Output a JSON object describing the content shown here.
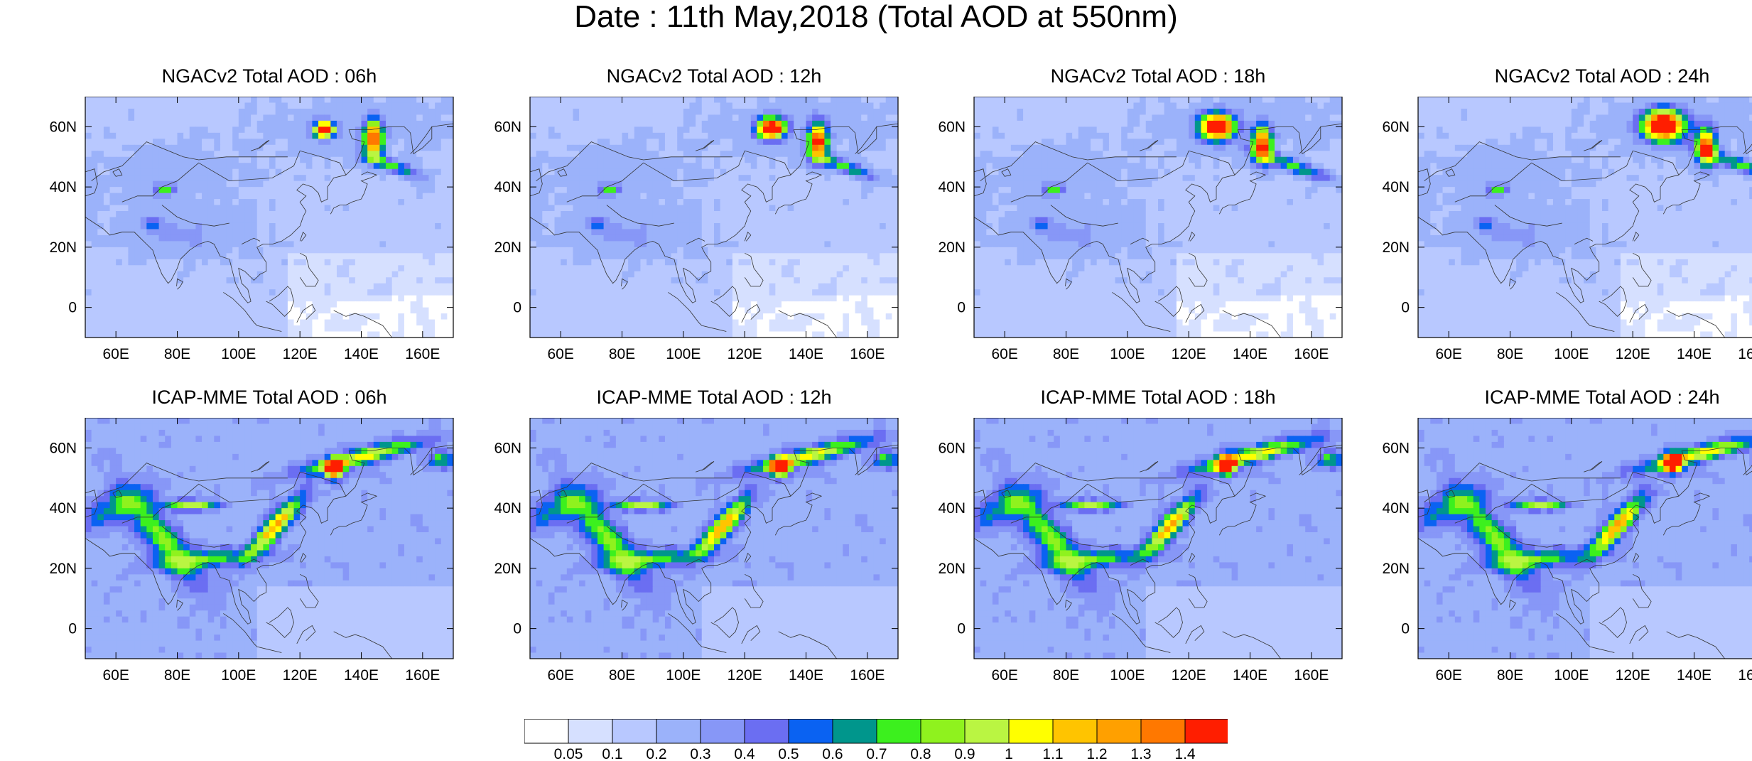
{
  "title": "Date : 11th May,2018 (Total AOD at 550nm)",
  "map": {
    "lon_range": [
      50,
      170
    ],
    "lat_range": [
      -10,
      70
    ],
    "lon_ticks": [
      "60E",
      "80E",
      "100E",
      "120E",
      "140E",
      "160E"
    ],
    "lon_tick_values": [
      60,
      80,
      100,
      120,
      140,
      160
    ],
    "lat_ticks": [
      "60N",
      "40N",
      "20N",
      "0"
    ],
    "lat_tick_values": [
      60,
      40,
      20,
      0
    ]
  },
  "panels": [
    {
      "id": "ngac-06",
      "title": "NGACv2 Total AOD : 06h",
      "model": "NGACv2",
      "hour": 6
    },
    {
      "id": "ngac-12",
      "title": "NGACv2 Total AOD : 12h",
      "model": "NGACv2",
      "hour": 12
    },
    {
      "id": "ngac-18",
      "title": "NGACv2 Total AOD : 18h",
      "model": "NGACv2",
      "hour": 18
    },
    {
      "id": "ngac-24",
      "title": "NGACv2 Total AOD : 24h",
      "model": "NGACv2",
      "hour": 24
    },
    {
      "id": "icap-06",
      "title": "ICAP-MME Total AOD : 06h",
      "model": "ICAP",
      "hour": 6
    },
    {
      "id": "icap-12",
      "title": "ICAP-MME Total AOD : 12h",
      "model": "ICAP",
      "hour": 12
    },
    {
      "id": "icap-18",
      "title": "ICAP-MME Total AOD : 18h",
      "model": "ICAP",
      "hour": 18
    },
    {
      "id": "icap-24",
      "title": "ICAP-MME Total AOD : 24h",
      "model": "ICAP",
      "hour": 24
    }
  ],
  "colorbar": {
    "labels": [
      "0.05",
      "0.1",
      "0.2",
      "0.3",
      "0.4",
      "0.5",
      "0.6",
      "0.7",
      "0.8",
      "0.9",
      "1",
      "1.1",
      "1.2",
      "1.3",
      "1.4"
    ],
    "levels": [
      0.05,
      0.1,
      0.2,
      0.3,
      0.4,
      0.5,
      0.6,
      0.7,
      0.8,
      0.9,
      1,
      1.1,
      1.2,
      1.3,
      1.4
    ],
    "colors": [
      "#ffffff",
      "#d6e0ff",
      "#b8c8ff",
      "#9bb2fa",
      "#8797f7",
      "#6b6ef2",
      "#0a62f2",
      "#00968c",
      "#3cf01e",
      "#8ff21e",
      "#baf542",
      "#ffff00",
      "#ffc400",
      "#ffa000",
      "#ff7800",
      "#ff1e00"
    ]
  }
}
